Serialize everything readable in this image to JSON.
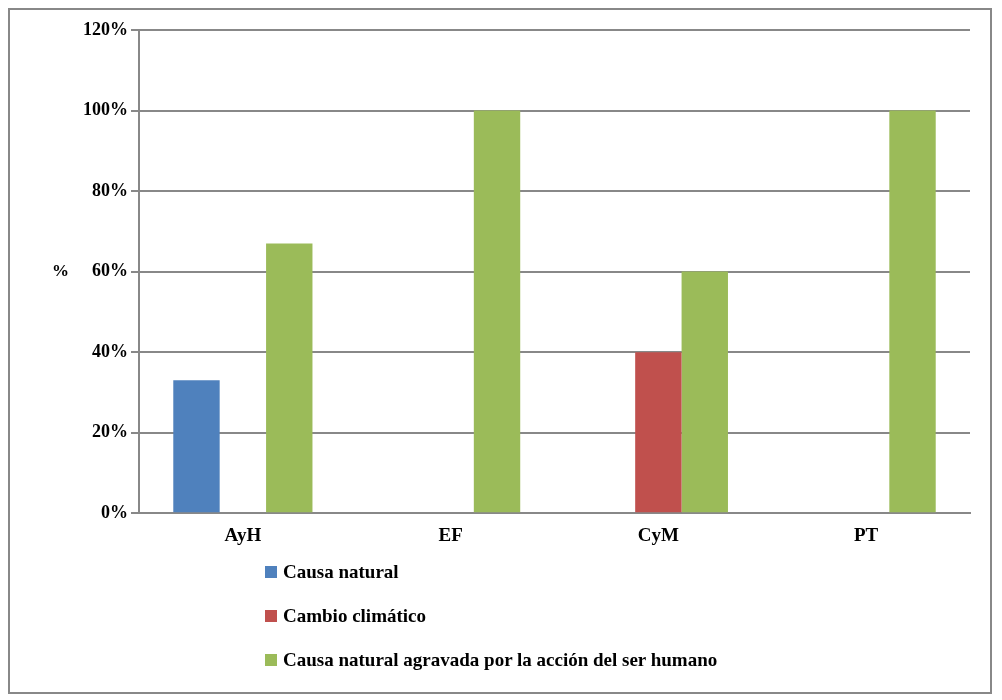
{
  "chart_data": {
    "type": "bar",
    "ylabel": "%",
    "categories": [
      "AyH",
      "EF",
      "CyM",
      "PT"
    ],
    "series": [
      {
        "name": "Causa natural",
        "color": "#4f81bd",
        "values": [
          33,
          0,
          0,
          0
        ]
      },
      {
        "name": "Cambio climático",
        "color": "#c0504d",
        "values": [
          0,
          0,
          40,
          0
        ]
      },
      {
        "name": "Causa natural agravada por la acción del ser humano",
        "color": "#9bbb59",
        "values": [
          67,
          100,
          60,
          100
        ]
      }
    ],
    "ylim": [
      0,
      120
    ],
    "yticks": [
      {
        "value": 0,
        "label": "0%"
      },
      {
        "value": 20,
        "label": "20%"
      },
      {
        "value": 40,
        "label": "40%"
      },
      {
        "value": 60,
        "label": "60%"
      },
      {
        "value": 80,
        "label": "80%"
      },
      {
        "value": 100,
        "label": "100%"
      },
      {
        "value": 120,
        "label": "120%"
      }
    ],
    "grid": "y",
    "legend": "bottom left"
  }
}
